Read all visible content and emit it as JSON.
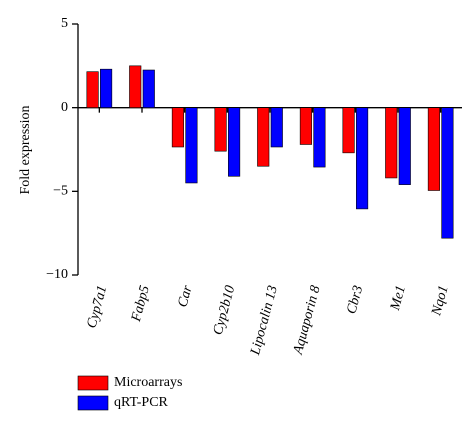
{
  "chart_data": {
    "type": "bar",
    "y_label": "Fold expression",
    "categories": [
      "Cyp7a1",
      "Fabp5",
      "Car",
      "Cyp2b10",
      "Lipocalin 13",
      "Aquaporin 8",
      "Cbr3",
      "Me1",
      "Nqo1"
    ],
    "series": [
      {
        "name": "Microarrays",
        "color": "#ff0000",
        "values": [
          2.15,
          2.5,
          -2.35,
          -2.6,
          -3.5,
          -2.2,
          -2.7,
          -4.2,
          -4.95
        ]
      },
      {
        "name": "qRT-PCR",
        "color": "#0000ff",
        "values": [
          2.3,
          2.25,
          -4.5,
          -4.1,
          -2.35,
          -3.55,
          -6.05,
          -4.6,
          -7.8
        ]
      }
    ],
    "ylim": [
      -10,
      5
    ],
    "yticks": [
      {
        "value": -10,
        "label": "−10"
      },
      {
        "value": -5,
        "label": "−5"
      },
      0,
      5
    ],
    "legend": "bottom-left"
  }
}
